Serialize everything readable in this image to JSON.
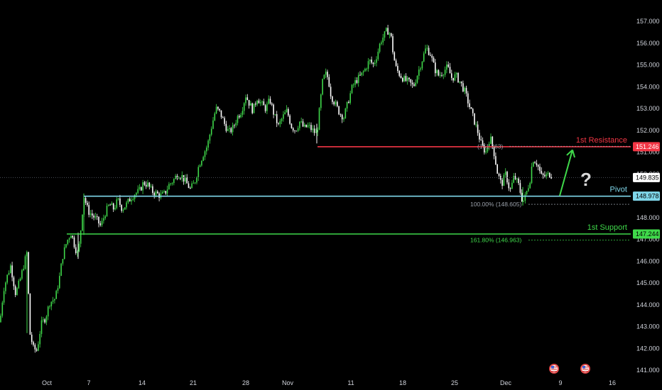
{
  "chart_data": {
    "type": "candlestick",
    "colors": {
      "background": "#000000",
      "up": "#3fd84a",
      "down": "#ffffff",
      "axis_text": "#d1d4dc",
      "resistance": "#f23645",
      "pivot": "#7fd6e9",
      "support": "#3fd84a",
      "fib_text": "#9aa0aa",
      "price_tag": "#ffffff"
    },
    "y_axis": {
      "ticks": [
        "157.000",
        "156.000",
        "155.000",
        "154.000",
        "153.000",
        "152.000",
        "151.000",
        "150.000",
        "149.000",
        "148.000",
        "147.000",
        "146.000",
        "145.000",
        "144.000",
        "143.000",
        "142.000",
        "141.000"
      ],
      "range": [
        140.6,
        157.3
      ]
    },
    "x_axis": {
      "ticks": [
        "Oct",
        "7",
        "14",
        "21",
        "28",
        "Nov",
        "11",
        "18",
        "25",
        "Dec",
        "9",
        "16"
      ]
    },
    "series_path": [
      [
        0,
        143.2
      ],
      [
        5,
        144.7
      ],
      [
        10,
        145.3
      ],
      [
        15,
        145.8
      ],
      [
        22,
        144.5
      ],
      [
        28,
        145.1
      ],
      [
        34,
        145.9
      ],
      [
        38,
        146.4
      ],
      [
        42,
        142.7
      ],
      [
        47,
        142.0
      ],
      [
        52,
        141.9
      ],
      [
        58,
        143.1
      ],
      [
        64,
        143.4
      ],
      [
        70,
        144.1
      ],
      [
        78,
        144.3
      ],
      [
        84,
        145.3
      ],
      [
        88,
        146.2
      ],
      [
        94,
        146.9
      ],
      [
        100,
        147.3
      ],
      [
        106,
        146.6
      ],
      [
        110,
        146.3
      ],
      [
        113,
        147.2
      ],
      [
        118,
        149.0
      ],
      [
        124,
        148.3
      ],
      [
        130,
        148.1
      ],
      [
        136,
        147.9
      ],
      [
        142,
        147.6
      ],
      [
        148,
        148.2
      ],
      [
        154,
        148.6
      ],
      [
        160,
        148.4
      ],
      [
        166,
        148.8
      ],
      [
        172,
        148.4
      ],
      [
        178,
        148.6
      ],
      [
        184,
        148.9
      ],
      [
        190,
        149.1
      ],
      [
        196,
        149.2
      ],
      [
        202,
        149.6
      ],
      [
        208,
        149.5
      ],
      [
        214,
        149.2
      ],
      [
        220,
        149.1
      ],
      [
        226,
        149.0
      ],
      [
        232,
        149.1
      ],
      [
        238,
        149.5
      ],
      [
        244,
        149.7
      ],
      [
        250,
        150.0
      ],
      [
        256,
        149.9
      ],
      [
        262,
        149.6
      ],
      [
        268,
        149.3
      ],
      [
        274,
        149.6
      ],
      [
        280,
        150.4
      ],
      [
        286,
        150.9
      ],
      [
        292,
        151.3
      ],
      [
        298,
        152.2
      ],
      [
        304,
        153.0
      ],
      [
        310,
        152.8
      ],
      [
        316,
        152.3
      ],
      [
        322,
        151.9
      ],
      [
        328,
        152.1
      ],
      [
        334,
        152.6
      ],
      [
        340,
        152.9
      ],
      [
        346,
        153.6
      ],
      [
        350,
        153.3
      ],
      [
        356,
        152.9
      ],
      [
        362,
        153.5
      ],
      [
        368,
        153.2
      ],
      [
        374,
        153.0
      ],
      [
        380,
        153.4
      ],
      [
        386,
        152.7
      ],
      [
        392,
        152.2
      ],
      [
        398,
        152.6
      ],
      [
        404,
        152.9
      ],
      [
        410,
        152.2
      ],
      [
        416,
        152.0
      ],
      [
        422,
        152.4
      ],
      [
        428,
        152.1
      ],
      [
        434,
        152.2
      ],
      [
        440,
        152.0
      ],
      [
        446,
        151.8
      ],
      [
        450,
        153.0
      ],
      [
        454,
        154.2
      ],
      [
        458,
        154.6
      ],
      [
        462,
        154.4
      ],
      [
        466,
        153.6
      ],
      [
        472,
        153.2
      ],
      [
        478,
        152.8
      ],
      [
        484,
        152.6
      ],
      [
        490,
        153.3
      ],
      [
        496,
        154.0
      ],
      [
        502,
        154.3
      ],
      [
        508,
        154.5
      ],
      [
        514,
        154.8
      ],
      [
        520,
        155.2
      ],
      [
        526,
        155.0
      ],
      [
        532,
        155.6
      ],
      [
        536,
        156.1
      ],
      [
        540,
        156.3
      ],
      [
        545,
        156.6
      ],
      [
        550,
        156.4
      ],
      [
        554,
        155.4
      ],
      [
        558,
        154.8
      ],
      [
        564,
        154.5
      ],
      [
        570,
        154.3
      ],
      [
        576,
        154.2
      ],
      [
        582,
        154.0
      ],
      [
        588,
        154.6
      ],
      [
        594,
        155.2
      ],
      [
        600,
        155.8
      ],
      [
        606,
        155.5
      ],
      [
        612,
        154.8
      ],
      [
        618,
        154.5
      ],
      [
        624,
        154.7
      ],
      [
        630,
        154.9
      ],
      [
        636,
        154.4
      ],
      [
        642,
        154.5
      ],
      [
        648,
        154.2
      ],
      [
        654,
        153.8
      ],
      [
        660,
        153.2
      ],
      [
        666,
        152.6
      ],
      [
        672,
        152.0
      ],
      [
        678,
        151.3
      ],
      [
        684,
        151.0
      ],
      [
        690,
        151.7
      ],
      [
        696,
        150.9
      ],
      [
        700,
        150.1
      ],
      [
        706,
        149.5
      ],
      [
        712,
        150.0
      ],
      [
        718,
        149.2
      ],
      [
        724,
        149.9
      ],
      [
        730,
        149.5
      ],
      [
        736,
        148.7
      ],
      [
        740,
        149.0
      ],
      [
        746,
        149.7
      ],
      [
        750,
        150.7
      ],
      [
        756,
        150.5
      ],
      [
        762,
        149.9
      ],
      [
        768,
        149.9
      ],
      [
        774,
        150.0
      ],
      [
        778,
        149.9
      ]
    ],
    "levels": [
      {
        "key": "resistance",
        "name": "1st Resistance",
        "price": 151.246,
        "tag": "151.246",
        "x_start": 447
      },
      {
        "key": "pivot",
        "name": "Pivot",
        "price": 148.978,
        "tag": "148.978",
        "x_start": 118
      },
      {
        "key": "support",
        "name": "1st Support",
        "price": 147.244,
        "tag": "147.244",
        "x_start": 94
      }
    ],
    "fib_levels": [
      {
        "label": "(151.263)",
        "price": 151.263,
        "x_text": 672,
        "x_end": 888
      },
      {
        "label": "100.00% (148.605)",
        "price": 148.605,
        "x_text": 662,
        "x_end": 888
      },
      {
        "label": "161.80% (146.963)",
        "price": 146.963,
        "x_text": 662,
        "x_end": 888
      }
    ],
    "current_price": {
      "value": 149.835,
      "tag": "149.835"
    },
    "arrow": {
      "from": [
        788,
        149.0
      ],
      "to": [
        806,
        151.1
      ]
    },
    "question_mark": "?"
  }
}
